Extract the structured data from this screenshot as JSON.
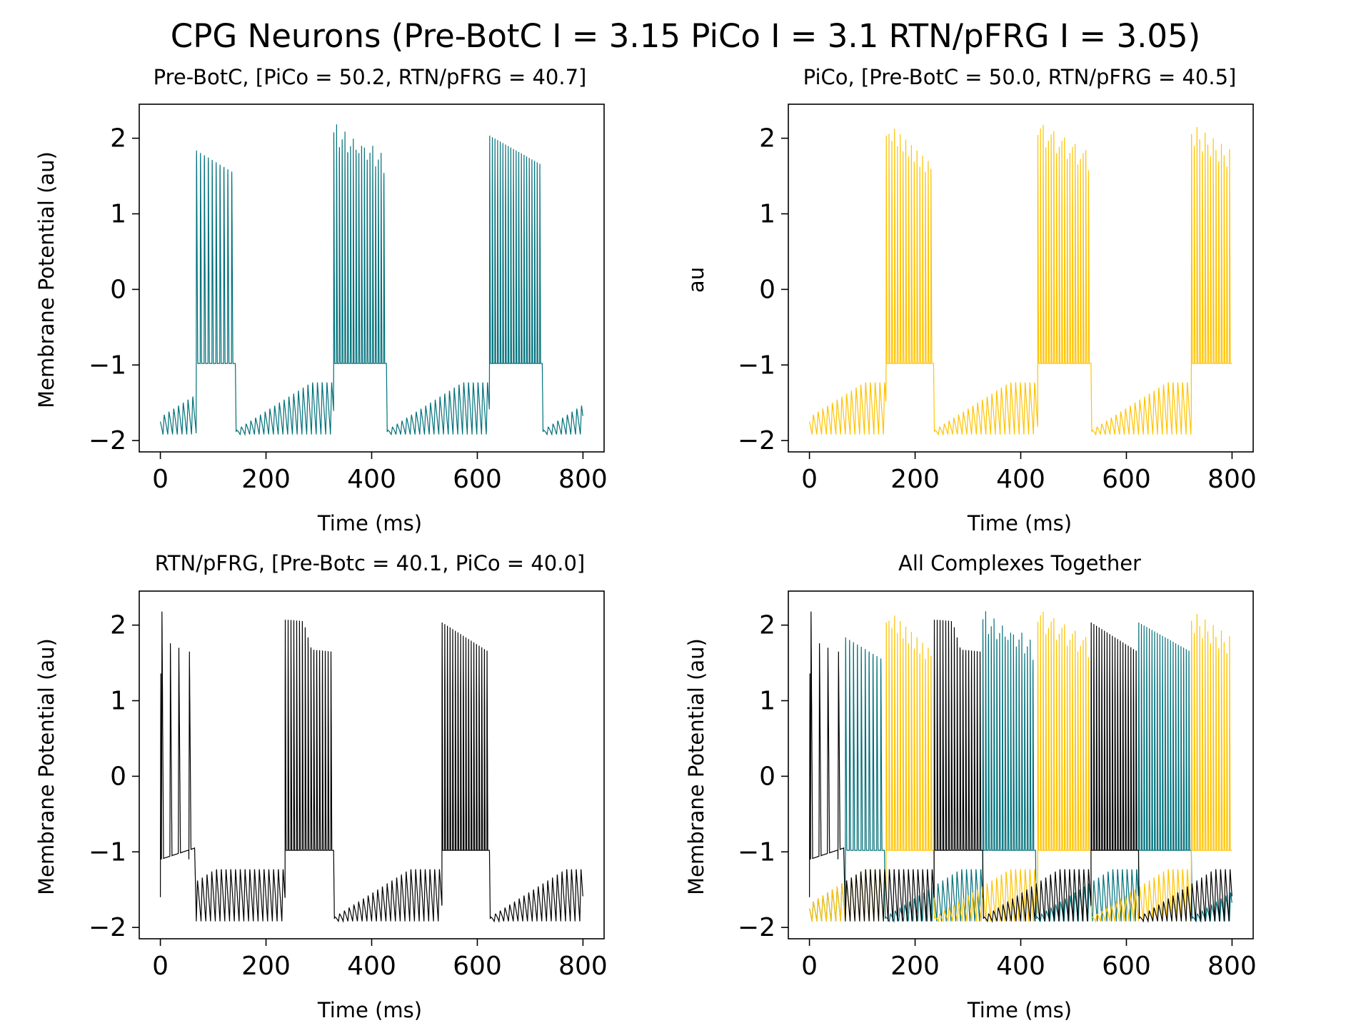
{
  "figure": {
    "suptitle": "CPG Neurons (Pre-BotC I = 3.15 PiCo I = 3.1 RTN/pFRG I = 3.05)"
  },
  "colors": {
    "prebotc": "#00707a",
    "pico": "#ffc300",
    "rtn": "#000000"
  },
  "chart_data": [
    {
      "type": "line",
      "title": "Pre-BotC, [PiCo = 50.2, RTN/pFRG = 40.7]",
      "xlabel": "Time (ms)",
      "ylabel": "Membrane Potential (au)",
      "xlim": [
        -40,
        840
      ],
      "ylim": [
        -2.15,
        2.45
      ],
      "xticks": [
        0,
        200,
        400,
        600,
        800
      ],
      "yticks": [
        -2,
        -1,
        0,
        1,
        2
      ],
      "xtick_labels": [
        "0",
        "200",
        "400",
        "600",
        "800"
      ],
      "ytick_labels": [
        "−2",
        "−1",
        "0",
        "1",
        "2"
      ],
      "series": [
        {
          "color": "#00707a",
          "bursts": [
            {
              "start": 68,
              "end": 142,
              "peak_start": 2.05,
              "peak_end": 1.75,
              "trough": -0.98,
              "spikes": 10
            },
            {
              "start": 328,
              "end": 428,
              "peak_start": 2.25,
              "peak_end": 1.8,
              "trough": -0.98,
              "spikes": 19
            },
            {
              "start": 623,
              "end": 723,
              "peak_start": 2.25,
              "peak_end": 1.85,
              "trough": -0.98,
              "spikes": 20
            }
          ],
          "spike_peaks_ms": [
            0,
            12,
            23,
            42,
            55,
            65
          ]
        }
      ]
    },
    {
      "type": "line",
      "title": "PiCo, [Pre-BotC = 50.0, RTN/pFRG = 40.5]",
      "xlabel": "Time (ms)",
      "ylabel": "au",
      "xlim": [
        -40,
        840
      ],
      "ylim": [
        -2.15,
        2.45
      ],
      "xticks": [
        0,
        200,
        400,
        600,
        800
      ],
      "yticks": [
        -2,
        -1,
        0,
        1,
        2
      ],
      "xtick_labels": [
        "0",
        "200",
        "400",
        "600",
        "800"
      ],
      "ytick_labels": [
        "−2",
        "−1",
        "0",
        "1",
        "2"
      ],
      "series": [
        {
          "color": "#ffc300",
          "bursts": [
            {
              "start": 145,
              "end": 235,
              "peak_start": 2.2,
              "peak_end": 1.8,
              "trough": -0.98,
              "spikes": 17
            },
            {
              "start": 432,
              "end": 533,
              "peak_start": 2.25,
              "peak_end": 1.85,
              "trough": -0.98,
              "spikes": 20
            },
            {
              "start": 723,
              "end": 800,
              "peak_start": 2.25,
              "peak_end": 1.9,
              "trough": -0.98,
              "spikes": 15
            }
          ],
          "spike_peaks_ms": [
            0,
            12,
            23,
            42,
            55,
            65
          ]
        }
      ]
    },
    {
      "type": "line",
      "title": "RTN/pFRG, [Pre-Botc = 40.1, PiCo = 40.0]",
      "xlabel": "Time (ms)",
      "ylabel": "Membrane Potential (au)",
      "xlim": [
        -40,
        840
      ],
      "ylim": [
        -2.15,
        2.45
      ],
      "xticks": [
        0,
        200,
        400,
        600,
        800
      ],
      "yticks": [
        -2,
        -1,
        0,
        1,
        2
      ],
      "xtick_labels": [
        "0",
        "200",
        "400",
        "600",
        "800"
      ],
      "ytick_labels": [
        "−2",
        "−1",
        "0",
        "1",
        "2"
      ],
      "series": [
        {
          "color": "#000000",
          "bursts": [
            {
              "start": 236,
              "end": 328,
              "peak_start": 2.22,
              "peak_end": 1.8,
              "trough": -0.98,
              "spikes": 17
            },
            {
              "start": 533,
              "end": 623,
              "peak_start": 2.25,
              "peak_end": 1.85,
              "trough": -0.98,
              "spikes": 18
            }
          ],
          "initial_spikes": [
            {
              "t": 2,
              "peak": 2.18
            },
            {
              "t": 18,
              "peak": 1.76
            },
            {
              "t": 34,
              "peak": 1.7
            },
            {
              "t": 54,
              "peak": 1.65
            }
          ]
        }
      ]
    },
    {
      "type": "line",
      "title": "All Complexes Together",
      "xlabel": "Time (ms)",
      "ylabel": "Membrane Potential (au)",
      "xlim": [
        -40,
        840
      ],
      "ylim": [
        -2.15,
        2.45
      ],
      "xticks": [
        0,
        200,
        400,
        600,
        800
      ],
      "yticks": [
        -2,
        -1,
        0,
        1,
        2
      ],
      "xtick_labels": [
        "0",
        "200",
        "400",
        "600",
        "800"
      ],
      "ytick_labels": [
        "−2",
        "−1",
        "0",
        "1",
        "2"
      ],
      "overlay_of": [
        0,
        1,
        2
      ]
    }
  ]
}
